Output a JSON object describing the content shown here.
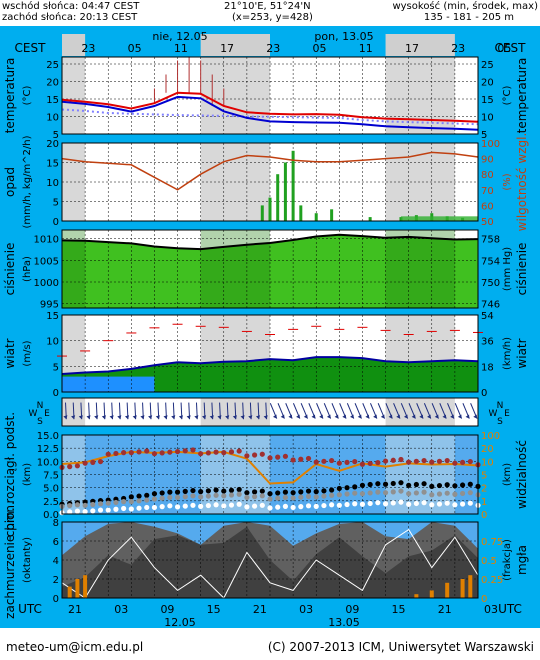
{
  "header": {
    "sunrise": "wschód słońca: 04:47 CEST",
    "sunset": "zachód słońca: 20:13 CEST",
    "coords": "21°10'E, 51°24'N",
    "grid": "(x=253, y=428)",
    "alt_label": "wysokość (min, środek, max)",
    "alt_values": "135 - 181 - 205 m"
  },
  "top_axis": {
    "tz": "CEST",
    "day1": "nie, 12.05",
    "day2": "pon, 13.05",
    "hours": [
      "23",
      "05",
      "11",
      "17",
      "23",
      "05",
      "11",
      "17",
      "23",
      "05"
    ]
  },
  "bottom_axis": {
    "tz": "UTC",
    "hours": [
      "21",
      "03",
      "09",
      "15",
      "21",
      "03",
      "09",
      "15",
      "21",
      "03"
    ],
    "day1": "12.05",
    "day2": "13.05"
  },
  "footer": {
    "email": "meteo-um@icm.edu.pl",
    "copyright": "(C) 2007-2013 ICM, Uniwersytet Warszawski"
  },
  "icons": {
    "wind_compass": "wind-compass-icon"
  },
  "chart_data": [
    {
      "type": "line",
      "panel": "temperature",
      "ylabel": "temperatura (°C)",
      "ylabel_right": "temperatura",
      "ylim": [
        5,
        27
      ],
      "ticks": [
        5,
        10,
        15,
        20,
        25
      ],
      "x_hours_utc": [
        0,
        3,
        6,
        9,
        12,
        15,
        18,
        21,
        24,
        27,
        30,
        33,
        36,
        39,
        42,
        45,
        48,
        51,
        54
      ],
      "series": [
        {
          "role": "air",
          "color": "#e00000",
          "values": [
            14.8,
            14.2,
            13.5,
            12.3,
            13.8,
            16.8,
            16.5,
            13.0,
            11.2,
            10.8,
            10.6,
            10.7,
            10.5,
            9.8,
            9.4,
            9.2,
            9.0,
            8.8,
            8.5
          ]
        },
        {
          "role": "perceived",
          "color": "#0000d0",
          "values": [
            14.2,
            13.6,
            12.7,
            11.4,
            13.0,
            15.6,
            15.2,
            11.5,
            9.6,
            8.6,
            8.4,
            8.3,
            8.2,
            7.8,
            7.2,
            6.9,
            6.7,
            6.5,
            6.2
          ]
        },
        {
          "role": "dewpoint",
          "color": "#8080ff",
          "values": [
            12.0,
            11.6,
            11.0,
            10.8,
            10.6,
            10.4,
            10.3,
            10.2,
            10.0,
            9.9,
            9.8,
            9.7,
            9.6,
            9.0,
            8.6,
            8.4,
            8.2,
            8.0,
            7.8
          ]
        },
        {
          "role": "max-spikes",
          "color": "#b03030",
          "x": [
            12,
            13.5,
            15,
            16.5,
            18,
            19.5,
            21
          ],
          "values": [
            18,
            22,
            26,
            27,
            26,
            22,
            18
          ]
        }
      ]
    },
    {
      "type": "bar",
      "panel": "precipitation-humidity",
      "ylabel": "opad (mm/h, kg/m^2/h)",
      "ylabel_right": "wilgotność wzgl. (%)",
      "ylim": [
        0,
        20
      ],
      "ticks": [
        0,
        5,
        10,
        15,
        20
      ],
      "ylim_right": [
        50,
        100
      ],
      "ticks_right": [
        50,
        60,
        70,
        80,
        90,
        100
      ],
      "series": [
        {
          "role": "humidity",
          "color": "#c04010",
          "x": [
            0,
            3,
            6,
            9,
            12,
            15,
            18,
            21,
            24,
            27,
            30,
            33,
            36,
            39,
            42,
            45,
            48,
            51,
            54
          ],
          "values": [
            90,
            88,
            87,
            86,
            78,
            70,
            80,
            88,
            92,
            91,
            89,
            88,
            88,
            89,
            90,
            91,
            94,
            93,
            91
          ]
        },
        {
          "role": "precip",
          "color": "#20a020",
          "x": [
            26,
            27,
            28,
            29,
            30,
            31,
            33,
            35,
            40,
            44,
            46,
            48,
            50,
            52
          ],
          "values": [
            4,
            6,
            12,
            15,
            18,
            4,
            2,
            3,
            1,
            1,
            1.5,
            2,
            1.2,
            0.8
          ]
        }
      ]
    },
    {
      "type": "area",
      "panel": "pressure",
      "ylabel": "ciśnienie (hPa)",
      "ylabel_right": "ciśnienie (mm Hg)",
      "ylim": [
        994,
        1012
      ],
      "ticks": [
        995,
        1000,
        1005,
        1010
      ],
      "ticks_right": [
        746,
        750,
        754,
        758
      ],
      "x_hours_utc": [
        0,
        3,
        6,
        9,
        12,
        15,
        18,
        21,
        24,
        27,
        30,
        33,
        36,
        39,
        42,
        45,
        48,
        51,
        54
      ],
      "values": [
        1009.6,
        1009.5,
        1009.2,
        1008.9,
        1008.2,
        1007.8,
        1007.6,
        1008.1,
        1008.6,
        1009.0,
        1009.7,
        1010.5,
        1010.9,
        1010.6,
        1010.2,
        1010.4,
        1010.1,
        1009.8,
        1009.9
      ]
    },
    {
      "type": "line",
      "panel": "wind",
      "ylabel": "wiatr (m/s)",
      "ylabel_right": "wiatr (km/h)",
      "ylim": [
        0,
        15
      ],
      "ticks": [
        0,
        5,
        10,
        15
      ],
      "ticks_right": [
        0,
        18,
        36,
        54
      ],
      "x_hours_utc": [
        0,
        3,
        6,
        9,
        12,
        15,
        18,
        21,
        24,
        27,
        30,
        33,
        36,
        39,
        42,
        45,
        48,
        51,
        54
      ],
      "series": [
        {
          "role": "speed",
          "color": "#0000a0",
          "values": [
            3.5,
            3.8,
            4.0,
            4.5,
            5.2,
            5.8,
            5.6,
            5.9,
            6.0,
            6.4,
            6.2,
            6.8,
            6.8,
            6.6,
            6.0,
            5.8,
            6.0,
            6.2,
            6.0
          ]
        },
        {
          "role": "gusts",
          "color": "#e00000",
          "values": [
            7,
            8,
            10,
            11.5,
            12.5,
            13.2,
            12.8,
            12.6,
            11.8,
            11.2,
            12.2,
            12.8,
            12.2,
            12.6,
            12.0,
            11.2,
            11.8,
            12.0,
            11.6
          ]
        }
      ]
    },
    {
      "type": "scatter",
      "panel": "clouds-visibility",
      "ylabel": "chm. rozciągł. podst. (km)",
      "ylabel_right": "widzialność (km)",
      "ylim": [
        0,
        15
      ],
      "ticks": [
        0,
        2.5,
        5,
        7.5,
        10,
        12.5,
        15
      ],
      "ticks_labels": [
        "0.0",
        "2.5",
        "5.0",
        "7.5",
        "10.0",
        "12.5",
        "15.0"
      ],
      "ticks_right": [
        0,
        1,
        2,
        5,
        10,
        20,
        100
      ],
      "series": [
        {
          "role": "visibility",
          "color": "#e08000",
          "x": [
            0,
            3,
            6,
            9,
            12,
            15,
            18,
            21,
            24,
            27,
            30,
            33,
            36,
            39,
            42,
            45,
            48,
            51,
            54
          ],
          "values": [
            9.5,
            9.8,
            11.0,
            11.8,
            11.6,
            11.8,
            11.5,
            11.8,
            10.5,
            5.8,
            6.0,
            9.5,
            8.2,
            9.6,
            9.0,
            9.6,
            9.4,
            9.5,
            9.2
          ]
        },
        {
          "role": "cloud-high",
          "color": "#a03030",
          "x": [
            0,
            3,
            6,
            9,
            12,
            15,
            18,
            21,
            24,
            27,
            30,
            33,
            36,
            39,
            42,
            45,
            48,
            51,
            54
          ],
          "values": [
            9.0,
            9.8,
            11.5,
            11.8,
            11.6,
            12.0,
            11.6,
            11.8,
            11.2,
            10.8,
            10.4,
            10.0,
            9.8,
            9.6,
            10.2,
            10.0,
            10.0,
            9.8,
            9.5
          ]
        },
        {
          "role": "cloud-mid",
          "color": "#000000",
          "x": [
            0,
            3,
            6,
            9,
            12,
            15,
            18,
            21,
            24,
            27,
            30,
            33,
            36,
            39,
            42,
            45,
            48,
            51,
            54
          ],
          "values": [
            2.0,
            2.4,
            2.8,
            3.4,
            4.0,
            4.3,
            4.4,
            4.5,
            4.2,
            4.0,
            4.2,
            4.4,
            5.0,
            5.6,
            5.8,
            5.6,
            5.4,
            5.5,
            5.4
          ]
        },
        {
          "role": "cloud-low",
          "color": "#909090",
          "x": [
            0,
            3,
            6,
            9,
            12,
            15,
            18,
            21,
            24,
            27,
            30,
            33,
            36,
            39,
            42,
            45,
            48,
            51,
            54
          ],
          "values": [
            1.6,
            1.8,
            2.2,
            2.5,
            3.0,
            3.3,
            3.4,
            3.6,
            3.3,
            3.0,
            3.2,
            3.4,
            3.8,
            4.0,
            4.2,
            4.0,
            3.8,
            3.9,
            3.8
          ]
        },
        {
          "role": "fog",
          "color": "#ffffff",
          "x": [
            0,
            3,
            6,
            9,
            12,
            15,
            18,
            21,
            24,
            27,
            30,
            33,
            36,
            39,
            42,
            45,
            48,
            51,
            54
          ],
          "values": [
            0.4,
            0.6,
            0.9,
            1.1,
            1.4,
            1.5,
            1.6,
            1.7,
            1.5,
            1.3,
            1.4,
            1.6,
            1.8,
            2.0,
            2.1,
            2.0,
            1.9,
            1.9,
            1.8
          ]
        }
      ]
    },
    {
      "type": "area",
      "panel": "cloud-cover",
      "ylabel": "zachmurzenie pion. (oktanty)",
      "ylabel_right": "mgła (frakcja)",
      "ylim": [
        0,
        8
      ],
      "ticks": [
        0,
        2,
        4,
        6,
        8
      ],
      "ticks_right": [
        0,
        0.25,
        0.5,
        0.75
      ],
      "x_hours_utc": [
        0,
        3,
        6,
        9,
        12,
        15,
        18,
        21,
        24,
        27,
        30,
        33,
        36,
        39,
        42,
        45,
        48,
        51,
        54
      ],
      "series": [
        {
          "role": "total",
          "color": "#606060",
          "values": [
            4.5,
            6.5,
            7.8,
            8,
            7.5,
            6.8,
            5.6,
            7.6,
            8,
            7.6,
            5.5,
            6.8,
            7.8,
            8,
            6.5,
            6.2,
            8,
            7.6,
            5.2
          ]
        },
        {
          "role": "lower",
          "color": "#404040",
          "values": [
            1.2,
            2.2,
            4.5,
            3.5,
            6.2,
            6.6,
            5.6,
            5.8,
            7.5,
            4.0,
            1.8,
            4.6,
            6.4,
            4.4,
            2.6,
            4.4,
            5.0,
            6.6,
            4.2
          ]
        },
        {
          "role": "fraction-line",
          "color": "#ffffff",
          "values": [
            0.2,
            0.0,
            0.5,
            0.8,
            0.4,
            0.1,
            0.3,
            0.0,
            0.6,
            0.2,
            0.1,
            0.5,
            0.3,
            0.1,
            0.7,
            0.9,
            0.4,
            0.8,
            0.3
          ]
        },
        {
          "role": "fog-bars",
          "color": "#e08000",
          "x": [
            1,
            2,
            3,
            46,
            48,
            50,
            52,
            53
          ],
          "values": [
            0.15,
            0.25,
            0.3,
            0.05,
            0.1,
            0.2,
            0.25,
            0.3
          ]
        }
      ]
    }
  ]
}
